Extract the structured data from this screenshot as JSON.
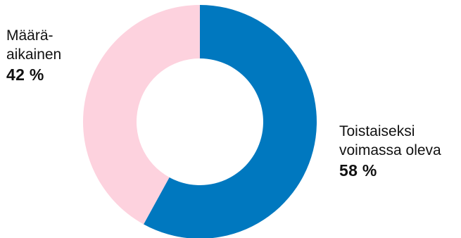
{
  "chart_data": {
    "type": "pie",
    "variant": "donut",
    "title": "",
    "slices": [
      {
        "label": "Toistaiseksi voimassa oleva",
        "label_lines": "Toistaiseksi\nvoimassa oleva",
        "value": 58,
        "value_label": "58 %",
        "color": "#0078BF"
      },
      {
        "label": "Määräaikainen",
        "label_lines": "Määrä-\naikainen",
        "value": 42,
        "value_label": "42 %",
        "color": "#FDD2DE"
      }
    ],
    "start": "top",
    "direction": "clockwise",
    "legend": "none"
  }
}
